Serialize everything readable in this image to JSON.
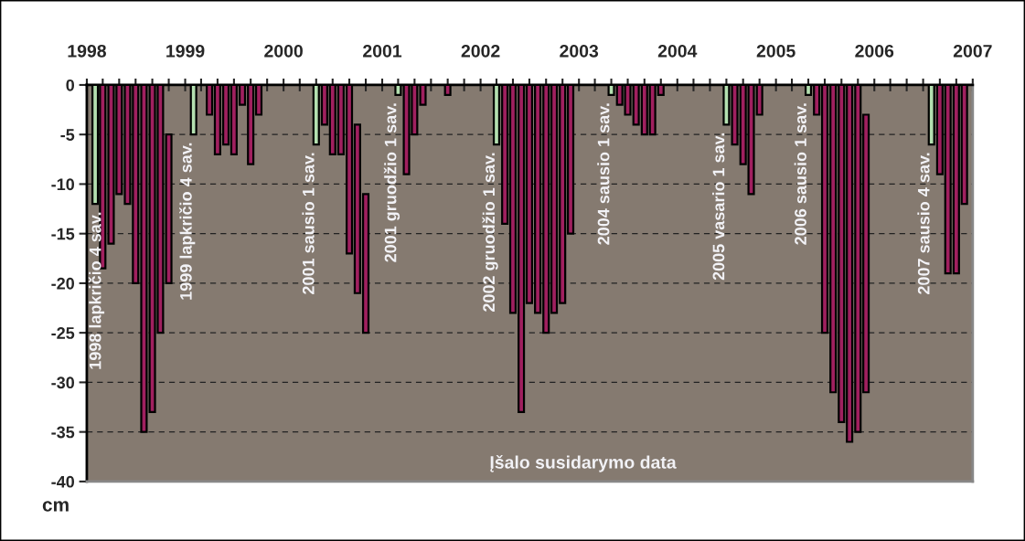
{
  "chart_data": {
    "type": "bar",
    "ylabel": "cm",
    "grid": "y",
    "x": [
      "1998-02",
      "1998-03",
      "1998-04",
      "1998-05",
      "1998-06",
      "1998-07",
      "1998-08",
      "1998-09",
      "1998-10",
      "1998-11",
      "1999-02",
      "1999-04",
      "1999-05",
      "1999-06",
      "1999-07",
      "1999-08",
      "1999-09",
      "1999-10",
      "2000-05",
      "2000-06",
      "2000-07",
      "2000-08",
      "2000-09",
      "2000-10",
      "2000-11",
      "2001-03",
      "2001-04",
      "2001-05",
      "2001-06",
      "2001-09",
      "2002-03",
      "2002-04",
      "2002-05",
      "2002-06",
      "2002-07",
      "2002-08",
      "2002-09",
      "2002-10",
      "2002-11",
      "2002-12",
      "2003-05",
      "2003-06",
      "2003-07",
      "2003-08",
      "2003-09",
      "2003-10",
      "2003-11",
      "2004-07",
      "2004-08",
      "2004-09",
      "2004-10",
      "2004-11",
      "2005-05",
      "2005-06",
      "2005-07",
      "2005-08",
      "2005-09",
      "2005-10",
      "2005-11",
      "2005-12",
      "2006-08",
      "2006-09",
      "2006-10",
      "2006-11",
      "2006-12"
    ],
    "values": [
      -12,
      -18.5,
      -16,
      -11,
      -12,
      -20,
      -35,
      -33,
      -25,
      -15,
      -5,
      -3,
      -7,
      -6,
      -7,
      -2,
      -8,
      -3,
      -6,
      -4,
      -7,
      -7,
      -17,
      -17,
      -14,
      -1,
      -9,
      -5,
      -2,
      -1,
      -6,
      -14,
      -23,
      -33,
      -22,
      -23,
      -25,
      -23,
      -22,
      -15,
      -1,
      -2,
      -3,
      -4,
      -5,
      -5,
      -1,
      -4,
      -6,
      -8,
      -11,
      -3,
      -1,
      -3,
      -25,
      -31,
      -34,
      -36,
      -35,
      -28,
      -6,
      -9,
      -19,
      -19,
      -12
    ],
    "base": [
      0,
      0,
      0,
      0,
      0,
      0,
      0,
      0,
      0,
      -5,
      0,
      0,
      0,
      0,
      0,
      0,
      0,
      0,
      0,
      0,
      0,
      0,
      0,
      -4,
      -11,
      0,
      0,
      0,
      0,
      0,
      0,
      0,
      0,
      0,
      0,
      0,
      0,
      0,
      0,
      0,
      0,
      0,
      0,
      0,
      0,
      0,
      0,
      0,
      0,
      0,
      0,
      0,
      0,
      0,
      0,
      0,
      0,
      0,
      0,
      -3,
      0,
      0,
      0,
      0,
      0
    ],
    "colors": [
      "#b4e0b0",
      "#a0205f",
      "#a0205f",
      "#a0205f",
      "#a0205f",
      "#a0205f",
      "#a0205f",
      "#a0205f",
      "#a0205f",
      "#a0205f",
      "#b4e0b0",
      "#a0205f",
      "#a0205f",
      "#a0205f",
      "#a0205f",
      "#a0205f",
      "#a0205f",
      "#a0205f",
      "#b4e0b0",
      "#a0205f",
      "#a0205f",
      "#a0205f",
      "#a0205f",
      "#a0205f",
      "#a0205f",
      "#b4e0b0",
      "#a0205f",
      "#a0205f",
      "#a0205f",
      "#a0205f",
      "#b4e0b0",
      "#a0205f",
      "#a0205f",
      "#a0205f",
      "#a0205f",
      "#a0205f",
      "#a0205f",
      "#a0205f",
      "#a0205f",
      "#a0205f",
      "#b4e0b0",
      "#a0205f",
      "#a0205f",
      "#a0205f",
      "#a0205f",
      "#a0205f",
      "#a0205f",
      "#b4e0b0",
      "#a0205f",
      "#a0205f",
      "#a0205f",
      "#a0205f",
      "#b4e0b0",
      "#a0205f",
      "#a0205f",
      "#a0205f",
      "#a0205f",
      "#a0205f",
      "#a0205f",
      "#a0205f",
      "#b4e0b0",
      "#a0205f",
      "#a0205f",
      "#a0205f",
      "#a0205f"
    ],
    "xlim": [
      "1998-01",
      "2007-01"
    ],
    "xticks": [
      "1998",
      {
        "value": "1998-03",
        "label": null
      },
      {
        "value": "1998-05",
        "label": null
      },
      {
        "value": "1998-07",
        "label": null
      },
      {
        "value": "1998-09",
        "label": null
      },
      {
        "value": "1998-11",
        "label": null
      },
      "1999",
      {
        "value": "1999-03",
        "label": null
      },
      {
        "value": "1999-05",
        "label": null
      },
      {
        "value": "1999-07",
        "label": null
      },
      {
        "value": "1999-09",
        "label": null
      },
      {
        "value": "1999-11",
        "label": null
      },
      "2000",
      {
        "value": "2000-03",
        "label": null
      },
      {
        "value": "2000-05",
        "label": null
      },
      {
        "value": "2000-07",
        "label": null
      },
      {
        "value": "2000-09",
        "label": null
      },
      {
        "value": "2000-11",
        "label": null
      },
      "2001",
      {
        "value": "2001-03",
        "label": null
      },
      {
        "value": "2001-05",
        "label": null
      },
      {
        "value": "2001-07",
        "label": null
      },
      {
        "value": "2001-09",
        "label": null
      },
      {
        "value": "2001-11",
        "label": null
      },
      "2002",
      {
        "value": "2002-03",
        "label": null
      },
      {
        "value": "2002-05",
        "label": null
      },
      {
        "value": "2002-07",
        "label": null
      },
      {
        "value": "2002-09",
        "label": null
      },
      {
        "value": "2002-11",
        "label": null
      },
      "2003",
      {
        "value": "2003-03",
        "label": null
      },
      {
        "value": "2003-05",
        "label": null
      },
      {
        "value": "2003-07",
        "label": null
      },
      {
        "value": "2003-09",
        "label": null
      },
      {
        "value": "2003-11",
        "label": null
      },
      "2004",
      {
        "value": "2004-03",
        "label": null
      },
      {
        "value": "2004-05",
        "label": null
      },
      {
        "value": "2004-07",
        "label": null
      },
      {
        "value": "2004-09",
        "label": null
      },
      {
        "value": "2004-11",
        "label": null
      },
      "2005",
      {
        "value": "2005-03",
        "label": null
      },
      {
        "value": "2005-05",
        "label": null
      },
      {
        "value": "2005-07",
        "label": null
      },
      {
        "value": "2005-09",
        "label": null
      },
      {
        "value": "2005-11",
        "label": null
      },
      "2006",
      {
        "value": "2006-03",
        "label": null
      },
      {
        "value": "2006-05",
        "label": null
      },
      {
        "value": "2006-07",
        "label": null
      },
      {
        "value": "2006-09",
        "label": null
      },
      {
        "value": "2006-11",
        "label": null
      },
      "2007"
    ],
    "ylim": [
      -40,
      0
    ],
    "yticks": [
      0,
      -5,
      -10,
      -15,
      -20,
      -25,
      -30,
      -35,
      -40
    ],
    "annotations": [
      {
        "text": "1998 lapkričio 4 sav.",
        "x": "1998-02",
        "y": -12
      },
      {
        "text": "1999 lapkričio 4 sav.",
        "x": "1999-02",
        "y": -5
      },
      {
        "text": "2001 sausio 1 sav.",
        "x": "2000-05",
        "y": -6
      },
      {
        "text": "2001 gruodžio 1 sav.",
        "x": "2001-03",
        "y": -1
      },
      {
        "text": "2002 gruodžio 1 sav.",
        "x": "2002-03",
        "y": -6
      },
      {
        "text": "2004 sausio 1 sav.",
        "x": "2003-05",
        "y": -1
      },
      {
        "text": "2005 vasario 1 sav.",
        "x": "2004-07",
        "y": -4
      },
      {
        "text": "2006 sausio 1 sav.",
        "x": "2005-05",
        "y": -1
      },
      {
        "text": "2007 sausio 4 sav.",
        "x": "2006-08",
        "y": -6
      },
      "Įšalo susidarymo data"
    ]
  }
}
